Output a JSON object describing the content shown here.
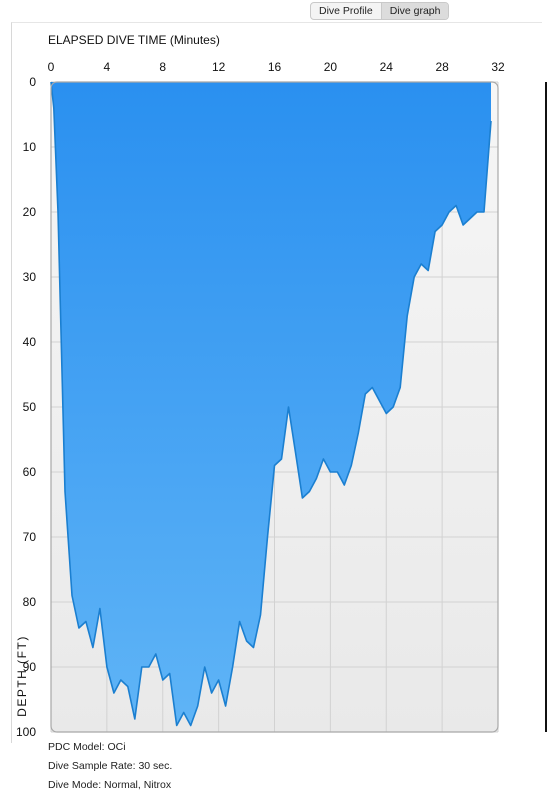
{
  "tabs": [
    {
      "label": "Dive Profile",
      "selected": false
    },
    {
      "label": "Dive graph",
      "selected": true
    }
  ],
  "chart_data": {
    "type": "area",
    "title": "ELAPSED DIVE TIME (Minutes)",
    "xlabel": "ELAPSED DIVE TIME (Minutes)",
    "ylabel": "DEPTH (FT)",
    "xlim": [
      0,
      32
    ],
    "ylim": [
      0,
      100
    ],
    "y_inverted": true,
    "x_ticks": [
      0,
      4,
      8,
      12,
      16,
      20,
      24,
      28,
      32
    ],
    "y_ticks": [
      0,
      10,
      20,
      30,
      40,
      50,
      60,
      70,
      80,
      90,
      100
    ],
    "grid": true,
    "fill_color": "#2e96f2",
    "line_color": "#1b7fd0",
    "series": [
      {
        "x": [
          0,
          0.2,
          0.5,
          1.0,
          1.5,
          2.0,
          2.5,
          3.0,
          3.5,
          4.0,
          4.5,
          5.0,
          5.5,
          6.0,
          6.5,
          7.0,
          7.5,
          8.0,
          8.5,
          9.0,
          9.5,
          10.0,
          10.5,
          11.0,
          11.5,
          12.0,
          12.5,
          13.0,
          13.5,
          14.0,
          14.5,
          15.0,
          15.5,
          16.0,
          16.5,
          17.0,
          17.5,
          18.0,
          18.5,
          19.0,
          19.5,
          20.0,
          20.5,
          21.0,
          21.5,
          22.0,
          22.5,
          23.0,
          23.5,
          24.0,
          24.5,
          25.0,
          25.5,
          26.0,
          26.5,
          27.0,
          27.5,
          28.0,
          28.5,
          29.0,
          29.5,
          30.0,
          30.5,
          31.0,
          31.5
        ],
        "y": [
          0,
          4,
          20,
          63,
          79,
          84,
          83,
          87,
          81,
          90,
          94,
          92,
          93,
          98,
          90,
          90,
          88,
          92,
          91,
          99,
          97,
          99,
          96,
          90,
          94,
          92,
          96,
          90,
          83,
          86,
          87,
          82,
          70,
          59,
          58,
          50,
          57,
          64,
          63,
          61,
          58,
          60,
          60,
          62,
          59,
          54,
          48,
          47,
          49,
          51,
          50,
          47,
          36,
          30,
          28,
          29,
          23,
          22,
          20,
          19,
          22,
          21,
          20,
          20,
          6
        ]
      }
    ],
    "info_lines": [
      "PDC Model: OCi",
      "Dive Sample Rate: 30 sec.",
      "Dive Mode: Normal, Nitrox"
    ]
  }
}
